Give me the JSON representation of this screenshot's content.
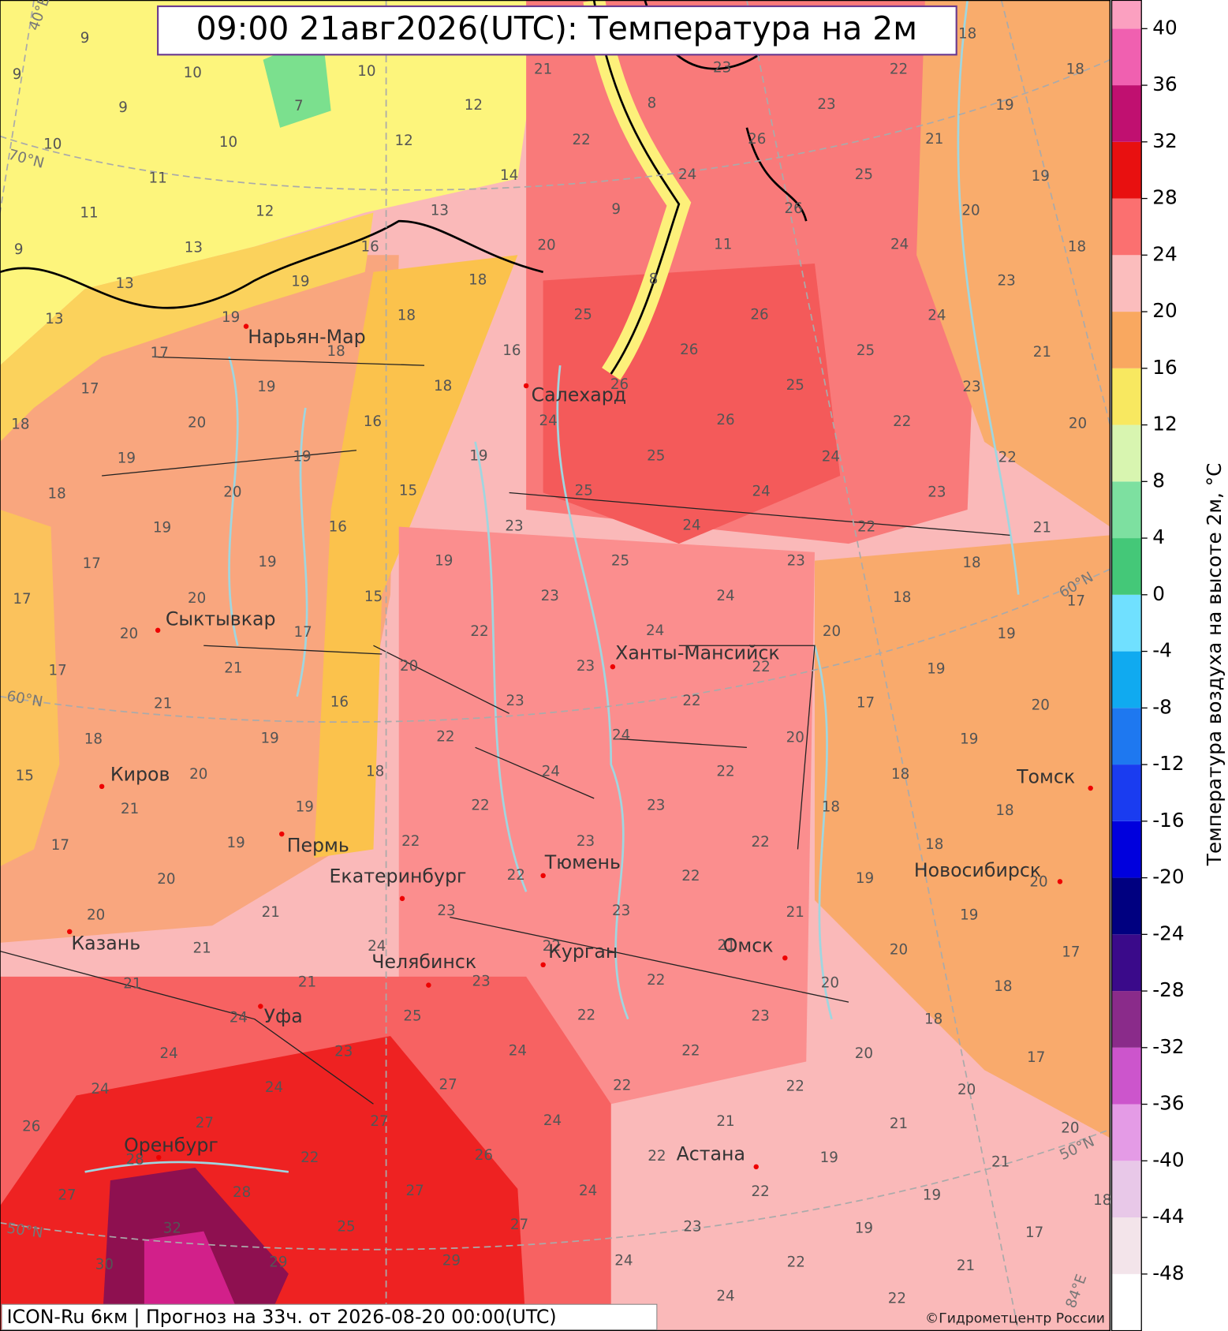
{
  "header": {
    "title": "09:00 21авг2026(UTC): Температура на 2м"
  },
  "footer": {
    "model": "ICON-Ru 6км | Прогноз на  33ч. от 2026-08-20 00:00(UTC)",
    "copyright": "©Гидрометцентр России"
  },
  "colorbar": {
    "label": "Температура воздуха на высоте 2м, °С",
    "lim": [
      -52,
      42
    ],
    "ticks": [
      40,
      36,
      32,
      28,
      24,
      20,
      16,
      12,
      8,
      4,
      0,
      -4,
      -8,
      -12,
      -16,
      -20,
      -24,
      -28,
      -32,
      -36,
      -40,
      -44,
      -48
    ],
    "colors": [
      "#ffffff",
      "#f3e4ea",
      "#e8c8e8",
      "#e49be6",
      "#cc55cc",
      "#8a2b8a",
      "#3a0a8a",
      "#000080",
      "#0000dd",
      "#1a3cf0",
      "#1e78f0",
      "#10aaf0",
      "#70e0ff",
      "#44c878",
      "#7de0a0",
      "#d8f5b0",
      "#f8e860",
      "#f9a860",
      "#fbbdbd",
      "#fb7070",
      "#e81010",
      "#c01070",
      "#f060b0",
      "#fba0c0"
    ]
  },
  "map": {
    "cities": [
      "Нарьян-Мар",
      "Салехард",
      "Сыктывкар",
      "Ханты-Мансийск",
      "Киров",
      "Пермь",
      "Екатеринбург",
      "Тюмень",
      "Томск",
      "Новосибирск",
      "Казань",
      "Омск",
      "Челябинск",
      "Курган",
      "Уфа",
      "Оренбург",
      "Астана"
    ],
    "graticule_labels": [
      "40°E",
      "70°N",
      "60°N",
      "50°N",
      "60°N",
      "50°N",
      "84°E"
    ],
    "temperatures": [
      [
        9,
        9,
        10,
        10,
        21,
        23,
        22,
        18,
        18
      ],
      [
        9,
        7,
        12,
        8,
        23,
        19
      ],
      [
        10,
        10,
        12,
        22,
        26,
        21
      ],
      [
        11,
        14,
        24,
        25,
        19
      ],
      [
        11,
        12,
        13,
        9,
        26,
        20
      ],
      [
        9,
        13,
        16,
        20,
        11,
        24,
        18
      ],
      [
        13,
        19,
        18,
        8,
        23
      ],
      [
        13,
        19,
        18,
        25,
        26,
        24
      ],
      [
        17,
        18,
        16,
        26,
        25,
        21
      ],
      [
        17,
        19,
        18,
        26,
        25,
        23
      ],
      [
        18,
        20,
        16,
        24,
        26,
        22,
        20
      ],
      [
        19,
        19,
        19,
        25,
        24,
        22
      ],
      [
        18,
        20,
        15,
        25,
        24,
        23
      ],
      [
        19,
        16,
        23,
        24,
        22,
        21
      ],
      [
        17,
        19,
        19,
        25,
        23,
        18
      ],
      [
        17,
        20,
        15,
        23,
        24,
        18,
        17
      ],
      [
        20,
        17,
        22,
        24,
        20,
        19
      ],
      [
        17,
        21,
        20,
        23,
        22,
        19
      ],
      [
        21,
        16,
        23,
        22,
        17,
        20
      ],
      [
        18,
        19,
        22,
        24,
        20,
        19
      ],
      [
        15,
        20,
        18,
        24,
        22,
        18
      ],
      [
        21,
        19,
        22,
        23,
        18,
        18
      ],
      [
        17,
        19,
        22,
        23,
        22,
        18
      ],
      [
        20,
        22,
        22,
        19,
        20
      ],
      [
        20,
        21,
        23,
        23,
        21,
        19
      ],
      [
        21,
        24,
        22,
        21,
        20,
        17
      ],
      [
        21,
        21,
        23,
        22,
        20,
        18
      ],
      [
        24,
        25,
        22,
        23,
        18
      ],
      [
        24,
        23,
        24,
        22,
        20,
        17
      ],
      [
        24,
        24,
        27,
        22,
        22,
        20
      ],
      [
        26,
        27,
        27,
        24,
        21,
        21,
        20
      ],
      [
        28,
        22,
        26,
        22,
        19,
        21
      ],
      [
        27,
        28,
        27,
        24,
        22,
        19,
        18
      ],
      [
        32,
        25,
        27,
        23,
        19,
        17
      ],
      [
        30,
        29,
        29,
        24,
        22,
        21
      ],
      [
        24,
        22
      ]
    ]
  }
}
